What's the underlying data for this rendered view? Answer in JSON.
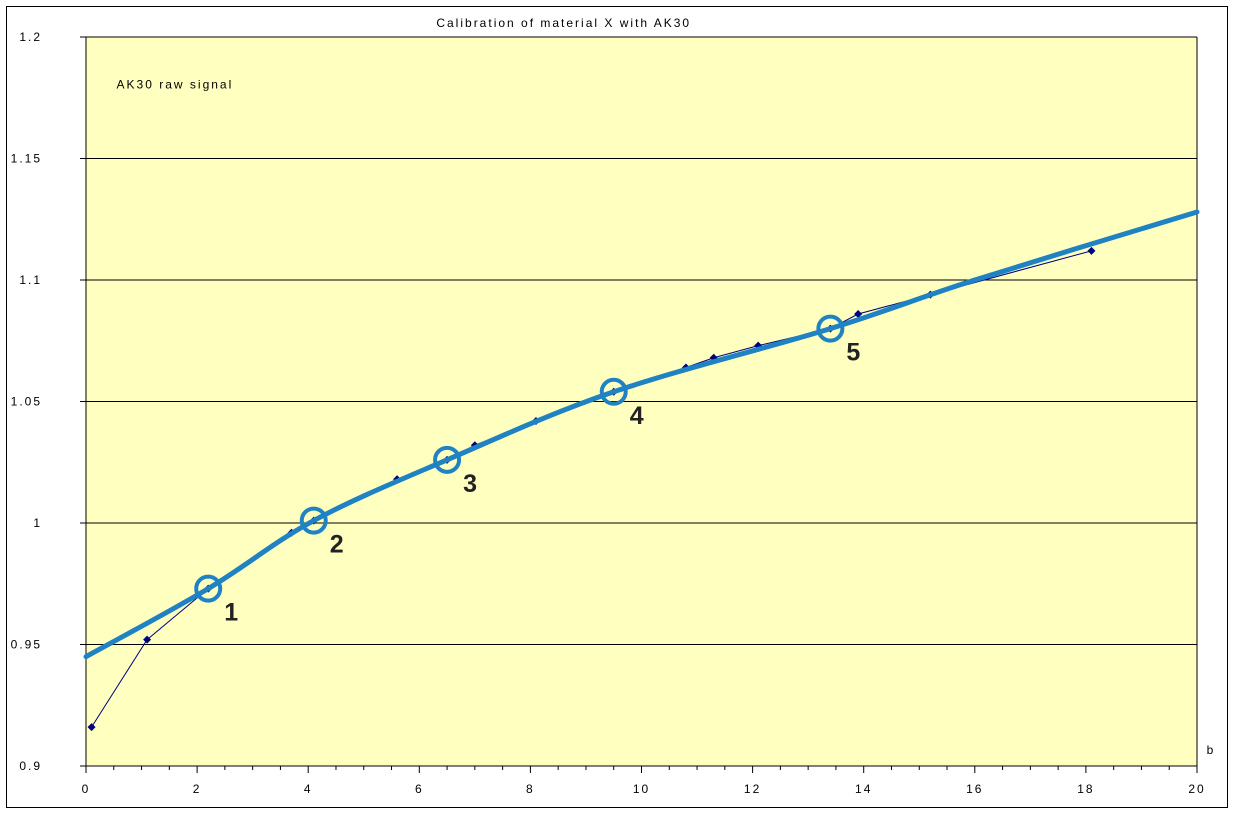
{
  "chart_data": {
    "type": "scatter",
    "title": "Calibration of material X with AK30",
    "annotation": "AK30 raw signal",
    "xlabel": "b",
    "ylabel": "",
    "xlim": [
      0,
      20
    ],
    "ylim": [
      0.9,
      1.2
    ],
    "x_ticks": [
      "0",
      "2",
      "4",
      "6",
      "8",
      "10",
      "12",
      "14",
      "16",
      "18",
      "20"
    ],
    "y_ticks": [
      "0.9",
      "0.95",
      "1",
      "1.05",
      "1.1",
      "1.15",
      "1.2"
    ],
    "x_minor_step": 0.5,
    "grid": "horizontal",
    "background_color": "#ffffc0",
    "series": [
      {
        "points": [
          [
            0.1,
            0.916
          ],
          [
            1.1,
            0.952
          ],
          [
            2.2,
            0.973
          ],
          [
            3.7,
            0.996
          ],
          [
            4.1,
            1.001
          ],
          [
            5.6,
            1.018
          ],
          [
            6.5,
            1.026
          ],
          [
            7.0,
            1.032
          ],
          [
            8.1,
            1.042
          ],
          [
            9.5,
            1.054
          ],
          [
            10.8,
            1.064
          ],
          [
            11.3,
            1.068
          ],
          [
            12.1,
            1.073
          ],
          [
            13.4,
            1.08
          ],
          [
            13.9,
            1.086
          ],
          [
            15.2,
            1.094
          ],
          [
            18.1,
            1.112
          ]
        ],
        "color": "#000080"
      },
      {
        "points": [
          [
            0,
            0.945
          ],
          [
            2.2,
            0.973
          ],
          [
            4.1,
            1.001
          ],
          [
            6.5,
            1.026
          ],
          [
            9.5,
            1.054
          ],
          [
            13.4,
            1.08
          ],
          [
            16,
            1.1
          ],
          [
            20,
            1.128
          ]
        ],
        "color": "#1e82c3"
      }
    ],
    "calibration_points": [
      {
        "label": "1",
        "x": 2.2,
        "y": 0.973
      },
      {
        "label": "2",
        "x": 4.1,
        "y": 1.001
      },
      {
        "label": "3",
        "x": 6.5,
        "y": 1.026
      },
      {
        "label": "4",
        "x": 9.5,
        "y": 1.054
      },
      {
        "label": "5",
        "x": 13.4,
        "y": 1.08
      }
    ]
  }
}
